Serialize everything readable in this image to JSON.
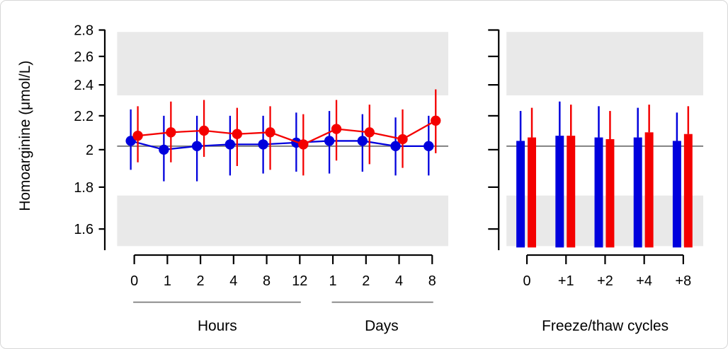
{
  "colors": {
    "blue": "#0000dd",
    "red": "#f40000",
    "band": "#e9e9e9",
    "reference_line": "#808080",
    "axis": "#000000",
    "group_underline": "#8c8c8c"
  },
  "chart_data": [
    {
      "type": "line",
      "panel": "storage-time-stability",
      "ylabel": "Homoarginine (μmol/L)",
      "yscale": "log",
      "ylim": [
        1.52,
        2.8
      ],
      "ytick_labels": [
        "2.8",
        "2.6",
        "2.4",
        "2.2",
        "2",
        "1.8",
        "1.6"
      ],
      "ytick_values": [
        2.8,
        2.6,
        2.4,
        2.2,
        2.0,
        1.8,
        1.6
      ],
      "reference_line": 2.02,
      "shaded_bands": [
        [
          2.33,
          2.785
        ],
        [
          1.525,
          1.758
        ]
      ],
      "grid": false,
      "legend": "none",
      "groups": [
        {
          "label": "Hours",
          "ticks": [
            "0",
            "1",
            "2",
            "4",
            "8",
            "12"
          ]
        },
        {
          "label": "Days",
          "ticks": [
            "1",
            "2",
            "4",
            "8"
          ]
        }
      ],
      "series": [
        {
          "name": "series-blue",
          "color_key": "blue",
          "marker": "filled-circle",
          "means": [
            2.05,
            2.0,
            2.02,
            2.03,
            2.03,
            2.04,
            2.05,
            2.05,
            2.02,
            2.02
          ],
          "lower": [
            1.89,
            1.83,
            1.83,
            1.86,
            1.87,
            1.88,
            1.87,
            1.88,
            1.86,
            1.86
          ],
          "upper": [
            2.24,
            2.2,
            2.2,
            2.2,
            2.2,
            2.22,
            2.23,
            2.21,
            2.19,
            2.2
          ]
        },
        {
          "name": "series-red",
          "color_key": "red",
          "marker": "filled-circle",
          "means": [
            2.08,
            2.1,
            2.11,
            2.09,
            2.1,
            2.03,
            2.12,
            2.1,
            2.06,
            2.17
          ],
          "lower": [
            1.93,
            1.93,
            1.96,
            1.91,
            1.89,
            1.86,
            1.94,
            1.92,
            1.9,
            1.98
          ],
          "upper": [
            2.26,
            2.29,
            2.3,
            2.25,
            2.26,
            2.21,
            2.3,
            2.27,
            2.24,
            2.37
          ]
        }
      ]
    },
    {
      "type": "bar",
      "panel": "freeze-thaw-stability",
      "xlabel": "Freeze/thaw cycles",
      "categories": [
        "0",
        "+1",
        "+2",
        "+4",
        "+8"
      ],
      "yscale": "log",
      "ylim": [
        1.52,
        2.8
      ],
      "baseline": 1.52,
      "reference_line": 2.02,
      "shaded_bands": [
        [
          2.33,
          2.785
        ],
        [
          1.525,
          1.758
        ]
      ],
      "series": [
        {
          "name": "series-blue",
          "color_key": "blue",
          "values": [
            2.05,
            2.08,
            2.07,
            2.07,
            2.05
          ],
          "upper": [
            2.23,
            2.29,
            2.26,
            2.25,
            2.22
          ]
        },
        {
          "name": "series-red",
          "color_key": "red",
          "values": [
            2.07,
            2.08,
            2.06,
            2.1,
            2.09
          ],
          "upper": [
            2.25,
            2.27,
            2.23,
            2.27,
            2.26
          ]
        }
      ]
    }
  ]
}
